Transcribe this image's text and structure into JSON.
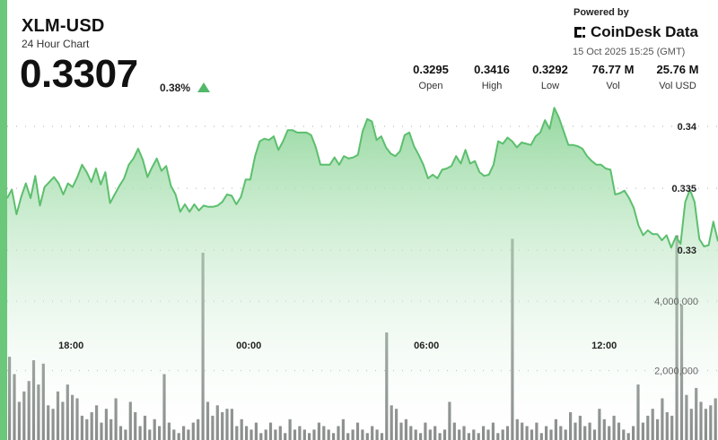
{
  "header": {
    "ticker": "XLM-USD",
    "subtitle": "24 Hour Chart",
    "price": "0.3307",
    "change": "0.38%",
    "change_icon": "triangle-up-icon",
    "powered_by": "Powered by",
    "brand": "CoinDesk Data",
    "brand_icon": "coindesk-logo-icon",
    "timestamp": "15 Oct 2025 15:25 (GMT)"
  },
  "stats": [
    {
      "value": "0.3295",
      "label": "Open"
    },
    {
      "value": "0.3416",
      "label": "High"
    },
    {
      "value": "0.3292",
      "label": "Low"
    },
    {
      "value": "76.77 M",
      "label": "Vol"
    },
    {
      "value": "25.76 M",
      "label": "Vol USD"
    }
  ],
  "colors": {
    "accent": "#6bc77a",
    "line": "#5cbf6e",
    "area_top": "#8fd69a",
    "volume_bar": "#6e7370",
    "up_arrow": "#52b86a"
  },
  "chart_data": {
    "type": "area",
    "x_tick_labels": [
      "18:00",
      "00:00",
      "06:00",
      "12:00"
    ],
    "price_tick_labels": [
      "0.34",
      "0.335",
      "0.33"
    ],
    "price_ticks": [
      0.34,
      0.335,
      0.33
    ],
    "volume_tick_labels": [
      "4,000,000",
      "2,000,000"
    ],
    "volume_ticks": [
      4000000,
      2000000
    ],
    "ylim_price": [
      0.3232,
      0.3429
    ],
    "ylim_volume": [
      0,
      6200000
    ],
    "grid": "dotted-horizontal",
    "series": [
      {
        "kind": "price",
        "values": [
          0.3342,
          0.3349,
          0.3329,
          0.3343,
          0.3354,
          0.3342,
          0.336,
          0.3336,
          0.3351,
          0.3355,
          0.3359,
          0.3354,
          0.3345,
          0.3354,
          0.3351,
          0.3359,
          0.3369,
          0.3363,
          0.3355,
          0.3366,
          0.3353,
          0.3363,
          0.3338,
          0.3345,
          0.3352,
          0.3358,
          0.3369,
          0.3374,
          0.3382,
          0.3373,
          0.3359,
          0.3367,
          0.3374,
          0.3364,
          0.3368,
          0.3352,
          0.3345,
          0.3331,
          0.3337,
          0.3331,
          0.3337,
          0.3332,
          0.3336,
          0.3335,
          0.3335,
          0.3336,
          0.3339,
          0.3345,
          0.3344,
          0.3337,
          0.3343,
          0.3357,
          0.3357,
          0.3376,
          0.3388,
          0.339,
          0.3389,
          0.3392,
          0.3381,
          0.3388,
          0.3397,
          0.3397,
          0.3395,
          0.3395,
          0.3395,
          0.3393,
          0.3383,
          0.3369,
          0.3369,
          0.3369,
          0.3375,
          0.3369,
          0.3376,
          0.3374,
          0.3375,
          0.3377,
          0.3396,
          0.3406,
          0.3404,
          0.3389,
          0.3392,
          0.3383,
          0.3378,
          0.3376,
          0.338,
          0.3393,
          0.3395,
          0.3384,
          0.3377,
          0.3369,
          0.3358,
          0.3361,
          0.3358,
          0.3365,
          0.3366,
          0.3368,
          0.3376,
          0.337,
          0.3381,
          0.337,
          0.3372,
          0.3363,
          0.336,
          0.3361,
          0.3369,
          0.3388,
          0.3386,
          0.3391,
          0.3388,
          0.3383,
          0.3387,
          0.3386,
          0.3385,
          0.3392,
          0.3395,
          0.3405,
          0.3398,
          0.3415,
          0.3407,
          0.3396,
          0.3385,
          0.3385,
          0.3384,
          0.3382,
          0.3376,
          0.3372,
          0.3369,
          0.3369,
          0.3366,
          0.3365,
          0.3345,
          0.3346,
          0.3348,
          0.3342,
          0.3334,
          0.332,
          0.3312,
          0.3316,
          0.3313,
          0.3313,
          0.3308,
          0.3312,
          0.3302,
          0.3311,
          0.3305,
          0.3339,
          0.3349,
          0.3339,
          0.3309,
          0.3303,
          0.3304,
          0.3323,
          0.3307
        ]
      },
      {
        "kind": "volume",
        "values": [
          2400000,
          1900000,
          1100000,
          1400000,
          1700000,
          2300000,
          1600000,
          2200000,
          1000000,
          900000,
          1400000,
          1100000,
          1600000,
          1300000,
          1200000,
          700000,
          600000,
          800000,
          1000000,
          500000,
          900000,
          600000,
          1200000,
          400000,
          300000,
          1100000,
          800000,
          400000,
          700000,
          300000,
          600000,
          400000,
          1900000,
          500000,
          300000,
          200000,
          400000,
          300000,
          500000,
          600000,
          5400000,
          1100000,
          700000,
          1000000,
          800000,
          900000,
          900000,
          400000,
          600000,
          400000,
          300000,
          500000,
          200000,
          300000,
          500000,
          300000,
          400000,
          200000,
          600000,
          300000,
          400000,
          300000,
          200000,
          300000,
          500000,
          400000,
          300000,
          200000,
          400000,
          600000,
          200000,
          300000,
          500000,
          300000,
          200000,
          400000,
          300000,
          200000,
          3100000,
          1000000,
          900000,
          500000,
          600000,
          400000,
          300000,
          200000,
          500000,
          300000,
          400000,
          200000,
          300000,
          1100000,
          500000,
          300000,
          400000,
          200000,
          300000,
          200000,
          400000,
          300000,
          500000,
          200000,
          300000,
          400000,
          5800000,
          600000,
          500000,
          400000,
          300000,
          500000,
          200000,
          400000,
          300000,
          600000,
          400000,
          300000,
          800000,
          500000,
          700000,
          400000,
          500000,
          300000,
          900000,
          600000,
          400000,
          700000,
          500000,
          300000,
          200000,
          400000,
          1600000,
          500000,
          700000,
          900000,
          600000,
          1200000,
          800000,
          700000,
          5900000,
          3900000,
          1300000,
          900000,
          1500000,
          1100000,
          900000,
          1000000,
          1200000
        ]
      }
    ]
  }
}
